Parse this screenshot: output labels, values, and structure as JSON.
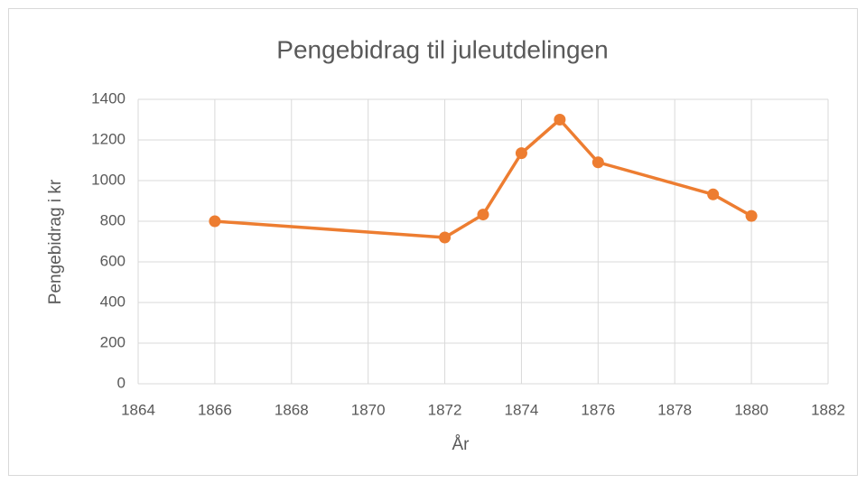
{
  "chart_data": {
    "type": "line",
    "title": "Pengebidrag til juleutdelingen",
    "x_label": "År",
    "y_label": "Pengebidrag i kr",
    "x": [
      1866,
      1872,
      1873,
      1874,
      1875,
      1876,
      1879,
      1880
    ],
    "series": [
      {
        "name": "Pengebidrag",
        "color": "#ed7d31",
        "values": [
          800,
          720,
          833,
          1135,
          1300,
          1090,
          932,
          826
        ]
      }
    ],
    "xlim": [
      1864,
      1882
    ],
    "xticks": [
      1864,
      1866,
      1868,
      1870,
      1872,
      1874,
      1876,
      1878,
      1880,
      1882
    ],
    "ylim": [
      0,
      1400
    ],
    "yticks": [
      0,
      200,
      400,
      600,
      800,
      1000,
      1200,
      1400
    ],
    "grid": true,
    "legend": false
  }
}
